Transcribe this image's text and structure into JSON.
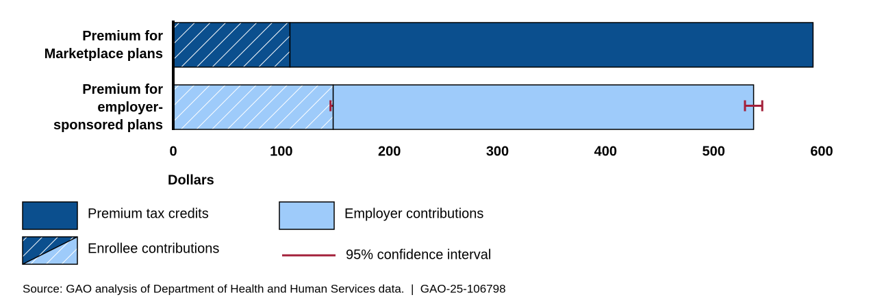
{
  "chart_data": {
    "type": "stacked-bar-horizontal",
    "categories": [
      "Premium for\nMarketplace plans",
      "Premium for\nemployer-\nsponsored plans"
    ],
    "series": [
      {
        "name": "Enrollee contributions",
        "colors": [
          "#0b4f8e",
          "#9ecbfa"
        ],
        "hatch": true,
        "values": [
          108,
          148
        ],
        "errors": [
          null,
          2.5
        ]
      },
      {
        "name": "Premium tax credits",
        "color": "#0b4f8e",
        "values": [
          484,
          null
        ],
        "errors": [
          null,
          null
        ]
      },
      {
        "name": "Employer contributions",
        "color": "#9ecbfa",
        "values": [
          null,
          389
        ],
        "errors": [
          null,
          8
        ]
      }
    ],
    "xlim": [
      0,
      600
    ],
    "xticks": [
      0,
      100,
      200,
      300,
      400,
      500,
      600
    ],
    "x_label": "Dollars",
    "ci_label": "95% confidence interval",
    "ci_color": "#a3203a",
    "grid": false,
    "source": "Source: GAO analysis of Department of Health and Human Services data.  |  GAO-25-106798"
  }
}
